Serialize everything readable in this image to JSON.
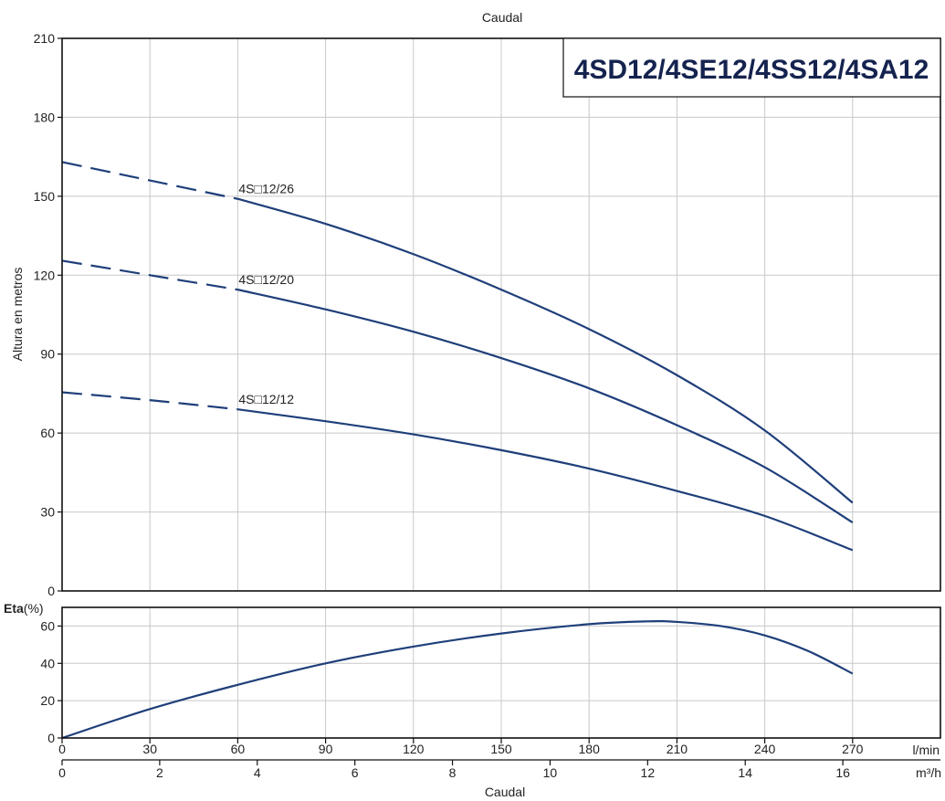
{
  "top_axis_label": "Caudal",
  "model_title": "4SD12/4SE12/4SS12/4SA12",
  "chart_data": [
    {
      "type": "line",
      "name": "head",
      "title": "4SD12/4SE12/4SS12/4SA12",
      "xlabel": "Caudal",
      "ylabel": "Altura en metros",
      "x_unit": "l/min",
      "xlim": [
        0,
        300
      ],
      "ylim": [
        0,
        210
      ],
      "y_ticks": [
        0,
        30,
        60,
        90,
        120,
        150,
        180,
        210
      ],
      "grid": true,
      "series": [
        {
          "name": "4S□12/26",
          "label": "4S□12/26",
          "dashed_points": [
            [
              0,
              163
            ],
            [
              30,
              156
            ],
            [
              60,
              149
            ]
          ],
          "points": [
            [
              60,
              149
            ],
            [
              90,
              139.5
            ],
            [
              120,
              128
            ],
            [
              150,
              114.5
            ],
            [
              180,
              99.5
            ],
            [
              210,
              82
            ],
            [
              240,
              61
            ],
            [
              270,
              33.5
            ]
          ]
        },
        {
          "name": "4S□12/20",
          "label": "4S□12/20",
          "dashed_points": [
            [
              0,
              125.5
            ],
            [
              30,
              120
            ],
            [
              60,
              114.5
            ]
          ],
          "points": [
            [
              60,
              114.5
            ],
            [
              90,
              107
            ],
            [
              120,
              98.5
            ],
            [
              150,
              88.5
            ],
            [
              180,
              77
            ],
            [
              210,
              63
            ],
            [
              240,
              47
            ],
            [
              270,
              26
            ]
          ]
        },
        {
          "name": "4S□12/12",
          "label": "4S□12/12",
          "dashed_points": [
            [
              0,
              75.5
            ],
            [
              30,
              72.5
            ],
            [
              60,
              69
            ]
          ],
          "points": [
            [
              60,
              69
            ],
            [
              90,
              64.5
            ],
            [
              120,
              59.5
            ],
            [
              150,
              53.5
            ],
            [
              180,
              46.5
            ],
            [
              210,
              38
            ],
            [
              240,
              28.5
            ],
            [
              270,
              15.5
            ]
          ]
        }
      ]
    },
    {
      "type": "line",
      "name": "efficiency",
      "ylabel_bold": "Eta",
      "ylabel_unit": "(%)",
      "xlim": [
        0,
        300
      ],
      "ylim": [
        0,
        70
      ],
      "y_ticks": [
        0,
        20,
        40,
        60
      ],
      "grid": true,
      "series": [
        {
          "name": "Eta",
          "points": [
            [
              0,
              0
            ],
            [
              30,
              15.5
            ],
            [
              60,
              28.5
            ],
            [
              90,
              40
            ],
            [
              120,
              49
            ],
            [
              150,
              56
            ],
            [
              180,
              61
            ],
            [
              200,
              62.5
            ],
            [
              210,
              62.2
            ],
            [
              225,
              60
            ],
            [
              240,
              55
            ],
            [
              255,
              46.5
            ],
            [
              270,
              34.5
            ]
          ]
        }
      ]
    }
  ],
  "x_axis_lmin": {
    "unit": "l/min",
    "ticks": [
      0,
      30,
      60,
      90,
      120,
      150,
      180,
      210,
      240,
      270
    ],
    "max": 300
  },
  "x_axis_m3h": {
    "unit": "m³/h",
    "ticks": [
      0,
      2,
      4,
      6,
      8,
      10,
      12,
      14,
      16
    ],
    "max": 18
  },
  "bottom_axis_label": "Caudal"
}
